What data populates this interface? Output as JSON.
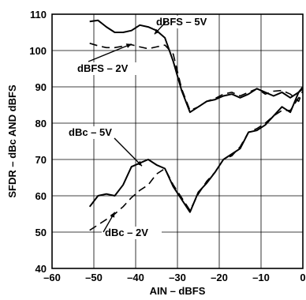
{
  "chart_data": {
    "type": "line",
    "title": "",
    "xlabel": "AIN – dBFS",
    "ylabel": "SFDR – dBc AND dBFS",
    "xlim": [
      -60,
      0
    ],
    "ylim": [
      40,
      110
    ],
    "xticks": [
      -60,
      -50,
      -40,
      -30,
      -20,
      -10,
      0
    ],
    "yticks": [
      40,
      50,
      60,
      70,
      80,
      90,
      100,
      110
    ],
    "x_tick_labels": [
      "–60",
      "–50",
      "–40",
      "–30",
      "–20",
      "–10",
      "0"
    ],
    "y_tick_labels": [
      "40",
      "50",
      "60",
      "70",
      "80",
      "90",
      "100",
      "110"
    ],
    "grid": true,
    "series": [
      {
        "name": "dBFS – 5V",
        "style": "solid",
        "x": [
          -51,
          -49,
          -47,
          -45,
          -43,
          -41,
          -39,
          -37,
          -35,
          -33,
          -31,
          -29,
          -27,
          -25,
          -23,
          -21,
          -19,
          -17,
          -15,
          -13,
          -11,
          -9,
          -7,
          -5,
          -3,
          -1,
          0
        ],
        "y": [
          108,
          108.3,
          106.5,
          105,
          105,
          105.5,
          107,
          106.5,
          105.5,
          103.5,
          97,
          89,
          83,
          84.5,
          86,
          86.5,
          87.5,
          88,
          87,
          88,
          89.5,
          88.5,
          87.5,
          88.5,
          87,
          88.5,
          90
        ]
      },
      {
        "name": "dBFS – 2V",
        "style": "dashed",
        "x": [
          -51,
          -49,
          -47,
          -45,
          -43,
          -41,
          -39,
          -37,
          -35,
          -33,
          -31,
          -29,
          -27,
          -25,
          -23,
          -21,
          -19,
          -17,
          -15,
          -13,
          -11,
          -9,
          -7,
          -5,
          -3,
          -1,
          0
        ],
        "y": [
          102,
          101.3,
          100.8,
          100.8,
          101.2,
          101.6,
          101,
          100.5,
          101,
          101.5,
          99,
          89.5,
          83.5,
          84.5,
          86,
          86.8,
          88,
          88.5,
          87.5,
          88.5,
          89.5,
          88,
          88.8,
          89,
          88,
          86,
          89
        ]
      },
      {
        "name": "dBc – 5V",
        "style": "solid",
        "x": [
          -51,
          -49,
          -47,
          -45,
          -43,
          -41,
          -39,
          -37,
          -35,
          -33,
          -31,
          -29,
          -27,
          -25,
          -23,
          -21,
          -19,
          -17,
          -15,
          -13,
          -11,
          -9,
          -7,
          -5,
          -3,
          -1,
          0
        ],
        "y": [
          57,
          60,
          60.5,
          60,
          63,
          68,
          69,
          70,
          68.5,
          67.5,
          62.5,
          59,
          55.5,
          61,
          63.5,
          66.5,
          70,
          71.5,
          73,
          77.5,
          78,
          79.5,
          82,
          84.5,
          83,
          88.5,
          89.5
        ]
      },
      {
        "name": "dBc – 2V",
        "style": "dashed",
        "x": [
          -51,
          -49,
          -47,
          -45,
          -43,
          -41,
          -39,
          -37,
          -35,
          -33,
          -31,
          -29,
          -27,
          -25,
          -23,
          -21,
          -19,
          -17,
          -15,
          -13,
          -11,
          -9,
          -7,
          -5,
          -3,
          -1,
          0
        ],
        "y": [
          50.5,
          52,
          53.5,
          55,
          57,
          59.5,
          61.5,
          63,
          66,
          67.5,
          63,
          59.5,
          56,
          60.5,
          64,
          66.5,
          70,
          71,
          73.5,
          77.5,
          78.5,
          80,
          82,
          83.5,
          83.5,
          87,
          88
        ]
      }
    ],
    "annotations": [
      {
        "text": "dBFS – 5V",
        "series": "dBFS – 5V"
      },
      {
        "text": "dBFS – 2V",
        "series": "dBFS – 2V"
      },
      {
        "text": "dBc – 5V",
        "series": "dBc – 5V"
      },
      {
        "text": "dBc – 2V",
        "series": "dBc – 2V"
      }
    ]
  }
}
